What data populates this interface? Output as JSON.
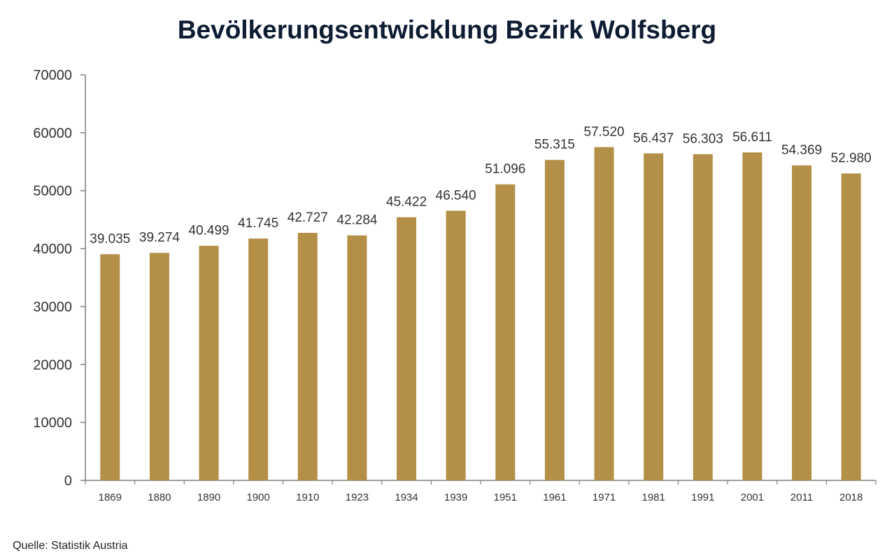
{
  "chart_data": {
    "type": "bar",
    "title": "Bevölkerungsentwicklung Bezirk Wolfsberg",
    "xlabel": "",
    "ylabel": "",
    "categories": [
      "1869",
      "1880",
      "1890",
      "1900",
      "1910",
      "1923",
      "1934",
      "1939",
      "1951",
      "1961",
      "1971",
      "1981",
      "1991",
      "2001",
      "2011",
      "2018"
    ],
    "values": [
      39035,
      39274,
      40499,
      41745,
      42727,
      42284,
      45422,
      46540,
      51096,
      55315,
      57520,
      56437,
      56303,
      56611,
      54369,
      52980
    ],
    "data_labels": [
      "39.035",
      "39.274",
      "40.499",
      "41.745",
      "42.727",
      "42.284",
      "45.422",
      "46.540",
      "51.096",
      "55.315",
      "57.520",
      "56.437",
      "56.303",
      "56.611",
      "54.369",
      "52.980"
    ],
    "ylim": [
      0,
      70000
    ],
    "yticks": [
      "0",
      "10000",
      "20000",
      "30000",
      "40000",
      "50000",
      "60000",
      "70000"
    ],
    "grid": false,
    "legend": "none",
    "bar_color": "#b38f48"
  },
  "source": "Quelle: Statistik Austria"
}
